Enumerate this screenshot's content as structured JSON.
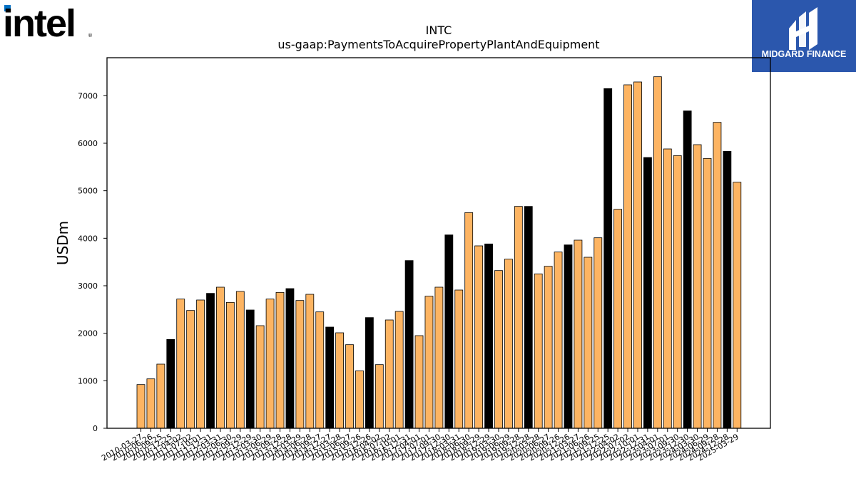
{
  "logos": {
    "left": "intel",
    "right": "MIDGARD FINANCE",
    "right_bg": "#2b57ad"
  },
  "colors": {
    "bar_fy": "#000000",
    "bar_q": "#fdb462",
    "bar_edge": "#000000"
  },
  "chart_data": {
    "type": "bar",
    "title": "INTC",
    "subtitle": "us-gaap:PaymentsToAcquirePropertyPlantAndEquipment",
    "xlabel": "",
    "ylabel": "USDm",
    "ylim": [
      0,
      7800
    ],
    "yticks": [
      0,
      1000,
      2000,
      3000,
      4000,
      5000,
      6000,
      7000
    ],
    "grid": false,
    "categories": [
      "2010-03-27",
      "2010-06-26",
      "2010-09-25",
      "2010-12-25",
      "2011-04-02",
      "2011-07-02",
      "2011-10-01",
      "2011-12-31",
      "2012-03-31",
      "2012-06-30",
      "2012-09-29",
      "2012-12-29",
      "2013-03-30",
      "2013-06-29",
      "2013-09-28",
      "2013-12-28",
      "2014-03-29",
      "2014-06-28",
      "2014-09-27",
      "2014-12-27",
      "2015-03-28",
      "2015-06-27",
      "2015-09-26",
      "2015-12-26",
      "2016-04-02",
      "2016-07-02",
      "2016-10-01",
      "2016-12-31",
      "2017-04-01",
      "2017-07-01",
      "2017-09-30",
      "2017-12-30",
      "2018-03-31",
      "2018-06-30",
      "2018-09-29",
      "2018-12-29",
      "2019-03-30",
      "2019-06-29",
      "2019-09-28",
      "2019-12-28",
      "2020-03-28",
      "2020-06-27",
      "2020-09-26",
      "2020-12-26",
      "2021-03-27",
      "2021-06-26",
      "2021-09-25",
      "2021-12-25",
      "2022-04-02",
      "2022-07-02",
      "2022-10-01",
      "2022-12-31",
      "2023-04-01",
      "2023-07-01",
      "2023-09-30",
      "2023-12-30",
      "2024-03-30",
      "2024-06-29",
      "2024-09-28",
      "2024-12-28",
      "2025-03-29"
    ],
    "values": [
      920,
      1040,
      1350,
      1870,
      2720,
      2480,
      2700,
      2840,
      2970,
      2650,
      2880,
      2490,
      2160,
      2720,
      2860,
      2940,
      2690,
      2820,
      2450,
      2130,
      2010,
      1760,
      1210,
      2330,
      1340,
      2280,
      2460,
      3530,
      1950,
      2780,
      2970,
      4070,
      2910,
      4540,
      3840,
      3880,
      3320,
      3560,
      4670,
      4670,
      3250,
      3410,
      3710,
      3860,
      3960,
      3600,
      4010,
      7150,
      4610,
      7230,
      7290,
      5700,
      7400,
      5880,
      5740,
      6680,
      5970,
      5680,
      6440,
      5830,
      5180
    ],
    "annual_flags": [
      false,
      false,
      false,
      true,
      false,
      false,
      false,
      true,
      false,
      false,
      false,
      true,
      false,
      false,
      false,
      true,
      false,
      false,
      false,
      true,
      false,
      false,
      false,
      true,
      false,
      false,
      false,
      true,
      false,
      false,
      false,
      true,
      false,
      false,
      false,
      true,
      false,
      false,
      false,
      true,
      false,
      false,
      false,
      true,
      false,
      false,
      false,
      true,
      false,
      false,
      false,
      true,
      false,
      false,
      false,
      true,
      false,
      false,
      false,
      true,
      false
    ],
    "series_colors": {
      "annual": "#000000",
      "quarterly": "#fdb462"
    }
  }
}
